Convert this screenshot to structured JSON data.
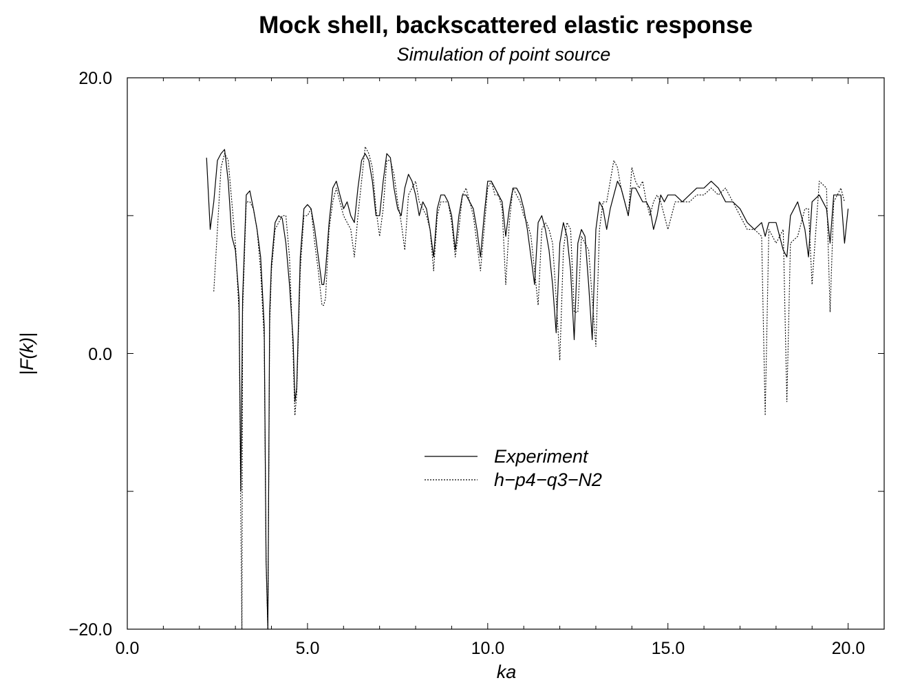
{
  "chart_data": {
    "type": "line",
    "title": "Mock shell, backscattered elastic response",
    "subtitle": "Simulation of point source",
    "xlabel": "ka",
    "ylabel": "|F(k)|",
    "xlim": [
      0,
      21
    ],
    "ylim": [
      -20,
      20
    ],
    "x_ticks": [
      "0.0",
      "5.0",
      "10.0",
      "15.0",
      "20.0"
    ],
    "y_ticks": [
      "−20.0",
      "0.0",
      "20.0"
    ],
    "legend_position": "center",
    "series": [
      {
        "name": "Experiment",
        "style": "solid",
        "color": "#000000",
        "x": [
          2.2,
          2.3,
          2.4,
          2.5,
          2.6,
          2.7,
          2.8,
          2.9,
          3.0,
          3.1,
          3.15,
          3.2,
          3.3,
          3.4,
          3.5,
          3.6,
          3.7,
          3.8,
          3.85,
          3.9,
          3.95,
          4.0,
          4.1,
          4.2,
          4.3,
          4.4,
          4.5,
          4.6,
          4.65,
          4.7,
          4.8,
          4.9,
          5.0,
          5.1,
          5.2,
          5.3,
          5.4,
          5.45,
          5.5,
          5.6,
          5.7,
          5.8,
          5.9,
          6.0,
          6.1,
          6.2,
          6.3,
          6.4,
          6.5,
          6.6,
          6.7,
          6.8,
          6.9,
          7.0,
          7.1,
          7.2,
          7.3,
          7.4,
          7.5,
          7.6,
          7.7,
          7.8,
          7.9,
          8.0,
          8.1,
          8.2,
          8.3,
          8.4,
          8.5,
          8.6,
          8.7,
          8.8,
          8.9,
          9.0,
          9.1,
          9.2,
          9.3,
          9.4,
          9.5,
          9.6,
          9.7,
          9.8,
          9.9,
          10.0,
          10.1,
          10.2,
          10.3,
          10.4,
          10.5,
          10.6,
          10.7,
          10.8,
          10.9,
          11.0,
          11.1,
          11.2,
          11.3,
          11.4,
          11.5,
          11.6,
          11.7,
          11.8,
          11.9,
          12.0,
          12.1,
          12.2,
          12.3,
          12.4,
          12.5,
          12.6,
          12.7,
          12.8,
          12.9,
          13.0,
          13.1,
          13.2,
          13.3,
          13.4,
          13.5,
          13.6,
          13.7,
          13.8,
          13.9,
          14.0,
          14.1,
          14.2,
          14.3,
          14.4,
          14.5,
          14.6,
          14.7,
          14.8,
          14.9,
          15.0,
          15.2,
          15.4,
          15.6,
          15.8,
          16.0,
          16.2,
          16.4,
          16.6,
          16.8,
          17.0,
          17.2,
          17.4,
          17.6,
          17.7,
          17.8,
          18.0,
          18.2,
          18.3,
          18.4,
          18.6,
          18.8,
          18.9,
          19.0,
          19.2,
          19.4,
          19.5,
          19.6,
          19.8,
          19.9,
          20.0
        ],
        "y": [
          14.2,
          9.0,
          11.0,
          14.0,
          14.5,
          14.8,
          12.5,
          8.5,
          7.5,
          4.0,
          -10.0,
          4.0,
          11.5,
          11.8,
          10.5,
          9.0,
          7.0,
          2.0,
          -15.0,
          -25.0,
          3.0,
          6.5,
          9.5,
          10.0,
          9.8,
          8.0,
          5.0,
          1.0,
          -3.5,
          -2.5,
          7.0,
          10.5,
          10.8,
          10.5,
          9.0,
          7.0,
          5.0,
          5.0,
          6.0,
          9.5,
          12.0,
          12.5,
          11.5,
          10.5,
          11.0,
          10.0,
          9.5,
          12.0,
          14.0,
          14.5,
          14.0,
          12.5,
          10.0,
          10.0,
          12.5,
          14.5,
          14.2,
          12.0,
          10.5,
          10.0,
          12.0,
          13.0,
          12.5,
          11.5,
          10.0,
          11.0,
          10.5,
          9.0,
          7.0,
          10.5,
          11.5,
          11.5,
          11.0,
          10.0,
          7.5,
          10.0,
          11.5,
          11.5,
          11.0,
          10.5,
          9.0,
          7.0,
          10.0,
          12.5,
          12.5,
          12.0,
          11.5,
          11.0,
          8.5,
          10.5,
          12.0,
          12.0,
          11.5,
          10.5,
          9.0,
          7.0,
          5.0,
          9.5,
          10.0,
          9.0,
          7.5,
          5.0,
          1.5,
          8.0,
          9.5,
          8.5,
          6.0,
          1.0,
          8.0,
          9.0,
          8.5,
          5.0,
          1.0,
          9.0,
          11.0,
          10.5,
          9.0,
          10.5,
          11.5,
          12.5,
          12.0,
          11.0,
          10.0,
          12.0,
          12.0,
          11.5,
          11.0,
          11.0,
          10.5,
          9.0,
          10.0,
          11.5,
          11.0,
          11.5,
          11.5,
          11.0,
          11.5,
          12.0,
          12.0,
          12.5,
          12.0,
          11.0,
          11.0,
          10.5,
          9.5,
          9.0,
          9.5,
          8.5,
          9.5,
          9.5,
          7.5,
          7.0,
          10.0,
          11.0,
          9.0,
          7.0,
          11.0,
          11.5,
          10.5,
          8.0,
          11.5,
          11.5,
          8.0,
          10.5
        ]
      },
      {
        "name": "h−p4−q3−N2",
        "style": "dotted",
        "color": "#000000",
        "x": [
          2.4,
          2.5,
          2.6,
          2.7,
          2.8,
          2.9,
          3.0,
          3.1,
          3.15,
          3.18,
          3.2,
          3.3,
          3.4,
          3.5,
          3.6,
          3.7,
          3.8,
          3.85,
          3.9,
          3.95,
          4.0,
          4.1,
          4.2,
          4.3,
          4.4,
          4.5,
          4.6,
          4.65,
          4.7,
          4.8,
          4.9,
          5.0,
          5.1,
          5.2,
          5.3,
          5.4,
          5.45,
          5.5,
          5.6,
          5.7,
          5.8,
          5.9,
          6.0,
          6.1,
          6.2,
          6.3,
          6.4,
          6.5,
          6.6,
          6.7,
          6.8,
          6.9,
          7.0,
          7.1,
          7.2,
          7.3,
          7.4,
          7.5,
          7.6,
          7.7,
          7.8,
          7.9,
          8.0,
          8.1,
          8.2,
          8.3,
          8.4,
          8.5,
          8.6,
          8.7,
          8.8,
          8.9,
          9.0,
          9.1,
          9.2,
          9.3,
          9.4,
          9.5,
          9.6,
          9.7,
          9.8,
          9.9,
          10.0,
          10.1,
          10.2,
          10.3,
          10.4,
          10.5,
          10.6,
          10.7,
          10.8,
          10.9,
          11.0,
          11.1,
          11.2,
          11.3,
          11.4,
          11.5,
          11.6,
          11.7,
          11.8,
          11.9,
          12.0,
          12.1,
          12.2,
          12.3,
          12.4,
          12.5,
          12.6,
          12.7,
          12.8,
          12.9,
          13.0,
          13.1,
          13.2,
          13.3,
          13.4,
          13.5,
          13.6,
          13.7,
          13.8,
          13.9,
          14.0,
          14.1,
          14.2,
          14.3,
          14.4,
          14.5,
          14.6,
          14.7,
          14.8,
          14.9,
          15.0,
          15.2,
          15.4,
          15.6,
          15.8,
          16.0,
          16.2,
          16.4,
          16.6,
          16.8,
          17.0,
          17.2,
          17.4,
          17.6,
          17.7,
          17.8,
          18.0,
          18.2,
          18.3,
          18.4,
          18.6,
          18.8,
          18.9,
          19.0,
          19.2,
          19.4,
          19.5,
          19.6,
          19.8,
          19.9
        ],
        "y": [
          4.5,
          9.0,
          13.5,
          14.5,
          14.0,
          11.0,
          8.0,
          3.0,
          -12.0,
          -40.0,
          3.0,
          11.0,
          11.0,
          10.5,
          9.0,
          6.0,
          1.0,
          -15.0,
          -30.0,
          2.0,
          6.0,
          9.0,
          9.5,
          10.0,
          10.0,
          7.0,
          0.0,
          -4.5,
          -3.0,
          6.0,
          10.0,
          10.0,
          10.5,
          8.0,
          6.0,
          3.5,
          3.5,
          4.0,
          9.0,
          11.0,
          12.0,
          11.0,
          10.0,
          9.5,
          9.0,
          7.0,
          10.0,
          12.5,
          15.0,
          14.5,
          13.5,
          10.5,
          8.5,
          10.5,
          14.0,
          14.0,
          13.0,
          11.0,
          9.5,
          7.5,
          11.5,
          12.0,
          12.5,
          11.0,
          10.5,
          10.0,
          9.0,
          6.0,
          10.0,
          11.0,
          11.0,
          11.0,
          9.5,
          7.0,
          9.0,
          11.5,
          12.0,
          11.0,
          10.0,
          8.0,
          6.0,
          9.0,
          12.0,
          12.5,
          11.5,
          11.5,
          10.5,
          5.0,
          9.5,
          12.0,
          11.5,
          11.0,
          10.0,
          9.5,
          8.5,
          6.0,
          3.5,
          9.0,
          9.5,
          9.0,
          8.0,
          4.0,
          -0.5,
          7.5,
          9.5,
          9.0,
          3.0,
          3.0,
          8.5,
          8.0,
          7.5,
          4.0,
          0.5,
          9.0,
          11.0,
          11.0,
          12.5,
          14.0,
          13.5,
          12.0,
          11.0,
          10.0,
          13.5,
          12.5,
          12.0,
          12.5,
          11.0,
          10.0,
          11.0,
          11.5,
          11.0,
          10.0,
          9.0,
          11.0,
          11.0,
          11.0,
          11.5,
          11.5,
          12.0,
          11.5,
          12.0,
          11.0,
          10.0,
          9.0,
          9.0,
          8.5,
          -4.5,
          9.0,
          8.0,
          9.0,
          -3.5,
          8.0,
          8.5,
          10.5,
          10.5,
          5.0,
          12.5,
          12.0,
          3.0,
          11.0,
          12.0,
          11.0
        ]
      }
    ]
  }
}
